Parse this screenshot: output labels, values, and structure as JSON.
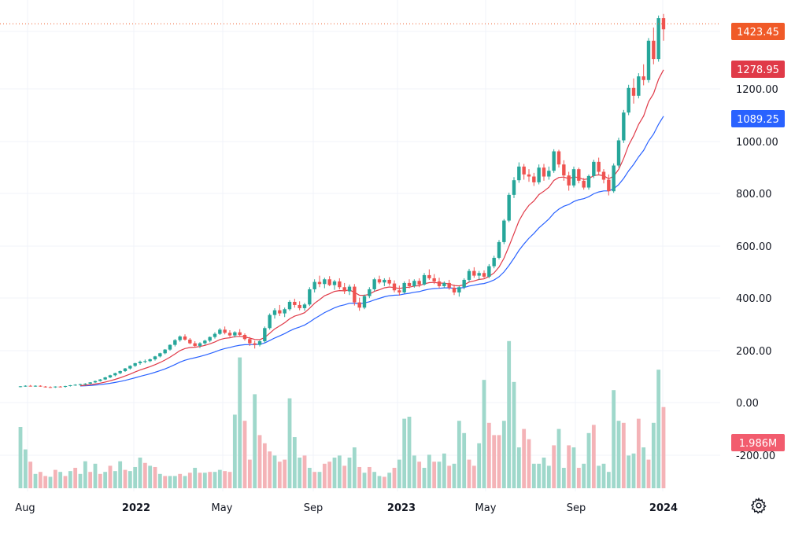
{
  "chart_data": {
    "type": "candlestick",
    "x_labels": [
      "Aug",
      "2022",
      "May",
      "Sep",
      "2023",
      "May",
      "Sep",
      "2024"
    ],
    "x_labels_bold": [
      "2022",
      "2023",
      "2024"
    ],
    "y_ticks": [
      "1200.00",
      "1000.00",
      "800.00",
      "600.00",
      "400.00",
      "200.00",
      "0.00",
      "-200.00"
    ],
    "price_ylim": [
      -300,
      1500
    ],
    "last_price": {
      "label": "1423.45",
      "value": 1423.45,
      "color": "#f05a28"
    },
    "ma_fast": {
      "label": "1278.95",
      "value": 1278.95,
      "color": "#e03a48"
    },
    "ma_slow": {
      "label": "1089.25",
      "value": 1089.25,
      "color": "#2962ff"
    },
    "volume": {
      "label": "1.986M",
      "color": "#f25c6e"
    },
    "colors": {
      "up": "#26a69a",
      "down": "#ef5350",
      "vol_up": "#9fd8cb",
      "vol_down": "#f4b3b7",
      "grid": "#f0f3fa"
    },
    "candles": [
      [
        60,
        63,
        58,
        62
      ],
      [
        62,
        66,
        60,
        64
      ],
      [
        64,
        67,
        61,
        63
      ],
      [
        63,
        66,
        60,
        64
      ],
      [
        64,
        66,
        60,
        61
      ],
      [
        61,
        63,
        57,
        59
      ],
      [
        59,
        62,
        56,
        58
      ],
      [
        58,
        62,
        56,
        61
      ],
      [
        61,
        63,
        58,
        60
      ],
      [
        60,
        64,
        57,
        63
      ],
      [
        63,
        67,
        61,
        66
      ],
      [
        66,
        70,
        64,
        68
      ],
      [
        68,
        72,
        65,
        70
      ],
      [
        70,
        74,
        67,
        72
      ],
      [
        72,
        78,
        70,
        77
      ],
      [
        77,
        84,
        75,
        82
      ],
      [
        82,
        90,
        80,
        88
      ],
      [
        88,
        98,
        86,
        96
      ],
      [
        96,
        106,
        93,
        104
      ],
      [
        104,
        114,
        100,
        112
      ],
      [
        112,
        122,
        108,
        120
      ],
      [
        120,
        132,
        117,
        130
      ],
      [
        130,
        142,
        126,
        140
      ],
      [
        140,
        152,
        136,
        150
      ],
      [
        150,
        160,
        144,
        156
      ],
      [
        156,
        164,
        150,
        158
      ],
      [
        158,
        168,
        154,
        165
      ],
      [
        165,
        178,
        160,
        176
      ],
      [
        176,
        190,
        172,
        188
      ],
      [
        188,
        204,
        184,
        202
      ],
      [
        202,
        222,
        198,
        220
      ],
      [
        220,
        242,
        214,
        238
      ],
      [
        238,
        256,
        232,
        252
      ],
      [
        252,
        260,
        236,
        240
      ],
      [
        240,
        246,
        222,
        226
      ],
      [
        226,
        234,
        210,
        216
      ],
      [
        216,
        230,
        208,
        226
      ],
      [
        226,
        240,
        220,
        236
      ],
      [
        236,
        252,
        230,
        250
      ],
      [
        250,
        268,
        244,
        262
      ],
      [
        262,
        284,
        258,
        278
      ],
      [
        278,
        290,
        260,
        266
      ],
      [
        266,
        276,
        250,
        256
      ],
      [
        256,
        272,
        248,
        268
      ],
      [
        268,
        280,
        254,
        258
      ],
      [
        258,
        264,
        236,
        242
      ],
      [
        242,
        250,
        216,
        226
      ],
      [
        226,
        236,
        206,
        220
      ],
      [
        220,
        238,
        214,
        234
      ],
      [
        234,
        290,
        228,
        284
      ],
      [
        284,
        340,
        278,
        334
      ],
      [
        334,
        360,
        320,
        352
      ],
      [
        352,
        372,
        330,
        340
      ],
      [
        340,
        362,
        326,
        356
      ],
      [
        356,
        390,
        350,
        384
      ],
      [
        384,
        396,
        362,
        372
      ],
      [
        372,
        386,
        352,
        360
      ],
      [
        360,
        380,
        350,
        374
      ],
      [
        374,
        440,
        368,
        432
      ],
      [
        432,
        470,
        420,
        460
      ],
      [
        460,
        484,
        440,
        452
      ],
      [
        452,
        476,
        436,
        470
      ],
      [
        470,
        482,
        444,
        448
      ],
      [
        448,
        468,
        430,
        462
      ],
      [
        462,
        474,
        432,
        440
      ],
      [
        440,
        456,
        414,
        424
      ],
      [
        424,
        450,
        410,
        442
      ],
      [
        442,
        452,
        370,
        382
      ],
      [
        382,
        400,
        350,
        362
      ],
      [
        362,
        412,
        356,
        406
      ],
      [
        406,
        440,
        398,
        432
      ],
      [
        432,
        476,
        424,
        470
      ],
      [
        470,
        484,
        452,
        458
      ],
      [
        458,
        474,
        444,
        468
      ],
      [
        468,
        478,
        446,
        454
      ],
      [
        454,
        466,
        420,
        428
      ],
      [
        428,
        446,
        408,
        420
      ],
      [
        420,
        462,
        416,
        456
      ],
      [
        456,
        470,
        436,
        444
      ],
      [
        444,
        470,
        438,
        464
      ],
      [
        464,
        474,
        440,
        450
      ],
      [
        450,
        494,
        446,
        486
      ],
      [
        486,
        508,
        468,
        474
      ],
      [
        474,
        490,
        452,
        462
      ],
      [
        462,
        476,
        436,
        444
      ],
      [
        444,
        462,
        436,
        456
      ],
      [
        456,
        468,
        430,
        438
      ],
      [
        438,
        450,
        410,
        420
      ],
      [
        420,
        444,
        404,
        440
      ],
      [
        440,
        474,
        432,
        468
      ],
      [
        468,
        510,
        460,
        502
      ],
      [
        502,
        516,
        476,
        484
      ],
      [
        484,
        502,
        468,
        494
      ],
      [
        494,
        504,
        474,
        480
      ],
      [
        480,
        528,
        474,
        520
      ],
      [
        520,
        560,
        512,
        552
      ],
      [
        552,
        620,
        546,
        612
      ],
      [
        612,
        700,
        604,
        694
      ],
      [
        694,
        800,
        688,
        792
      ],
      [
        792,
        860,
        780,
        848
      ],
      [
        848,
        916,
        838,
        900
      ],
      [
        900,
        910,
        850,
        870
      ],
      [
        870,
        890,
        842,
        862
      ],
      [
        862,
        876,
        826,
        840
      ],
      [
        840,
        908,
        832,
        896
      ],
      [
        896,
        910,
        846,
        862
      ],
      [
        862,
        900,
        850,
        884
      ],
      [
        884,
        966,
        876,
        958
      ],
      [
        958,
        964,
        896,
        908
      ],
      [
        908,
        924,
        846,
        866
      ],
      [
        866,
        880,
        808,
        828
      ],
      [
        828,
        900,
        820,
        890
      ],
      [
        890,
        896,
        836,
        846
      ],
      [
        846,
        856,
        812,
        820
      ],
      [
        820,
        870,
        812,
        864
      ],
      [
        864,
        926,
        856,
        918
      ],
      [
        918,
        934,
        870,
        880
      ],
      [
        880,
        890,
        836,
        850
      ],
      [
        850,
        870,
        790,
        806
      ],
      [
        806,
        912,
        800,
        904
      ],
      [
        904,
        1010,
        896,
        1000
      ],
      [
        1000,
        1116,
        990,
        1106
      ],
      [
        1106,
        1212,
        1096,
        1200
      ],
      [
        1200,
        1236,
        1140,
        1170
      ],
      [
        1170,
        1256,
        1160,
        1244
      ],
      [
        1244,
        1290,
        1210,
        1230
      ],
      [
        1230,
        1390,
        1220,
        1380
      ],
      [
        1380,
        1430,
        1290,
        1310
      ],
      [
        1310,
        1476,
        1300,
        1466
      ],
      [
        1466,
        1482,
        1380,
        1423.45
      ]
    ],
    "volumes": [
      [
        1.5,
        "up"
      ],
      [
        0.95,
        "up"
      ],
      [
        0.65,
        "down"
      ],
      [
        0.35,
        "up"
      ],
      [
        0.4,
        "down"
      ],
      [
        0.3,
        "down"
      ],
      [
        0.28,
        "up"
      ],
      [
        0.45,
        "down"
      ],
      [
        0.4,
        "up"
      ],
      [
        0.3,
        "down"
      ],
      [
        0.42,
        "up"
      ],
      [
        0.5,
        "down"
      ],
      [
        0.35,
        "up"
      ],
      [
        0.66,
        "up"
      ],
      [
        0.4,
        "down"
      ],
      [
        0.6,
        "up"
      ],
      [
        0.35,
        "down"
      ],
      [
        0.4,
        "up"
      ],
      [
        0.55,
        "down"
      ],
      [
        0.42,
        "up"
      ],
      [
        0.66,
        "up"
      ],
      [
        0.45,
        "down"
      ],
      [
        0.42,
        "up"
      ],
      [
        0.52,
        "up"
      ],
      [
        0.75,
        "up"
      ],
      [
        0.62,
        "down"
      ],
      [
        0.55,
        "up"
      ],
      [
        0.52,
        "down"
      ],
      [
        0.35,
        "up"
      ],
      [
        0.3,
        "down"
      ],
      [
        0.3,
        "up"
      ],
      [
        0.3,
        "up"
      ],
      [
        0.35,
        "down"
      ],
      [
        0.3,
        "up"
      ],
      [
        0.38,
        "down"
      ],
      [
        0.5,
        "up"
      ],
      [
        0.38,
        "down"
      ],
      [
        0.38,
        "up"
      ],
      [
        0.4,
        "down"
      ],
      [
        0.4,
        "up"
      ],
      [
        0.45,
        "up"
      ],
      [
        0.42,
        "down"
      ],
      [
        0.4,
        "down"
      ],
      [
        1.8,
        "up"
      ],
      [
        3.2,
        "up"
      ],
      [
        1.65,
        "down"
      ],
      [
        0.7,
        "down"
      ],
      [
        2.3,
        "up"
      ],
      [
        1.3,
        "down"
      ],
      [
        1.1,
        "down"
      ],
      [
        0.9,
        "down"
      ],
      [
        0.8,
        "up"
      ],
      [
        0.65,
        "down"
      ],
      [
        0.7,
        "down"
      ],
      [
        2.2,
        "up"
      ],
      [
        1.25,
        "up"
      ],
      [
        0.75,
        "up"
      ],
      [
        0.8,
        "down"
      ],
      [
        0.5,
        "up"
      ],
      [
        0.4,
        "down"
      ],
      [
        0.4,
        "up"
      ],
      [
        0.6,
        "down"
      ],
      [
        0.65,
        "down"
      ],
      [
        0.75,
        "up"
      ],
      [
        0.8,
        "up"
      ],
      [
        0.55,
        "down"
      ],
      [
        0.75,
        "up"
      ],
      [
        1.0,
        "up"
      ],
      [
        0.52,
        "down"
      ],
      [
        0.38,
        "up"
      ],
      [
        0.52,
        "down"
      ],
      [
        0.4,
        "up"
      ],
      [
        0.3,
        "up"
      ],
      [
        0.28,
        "down"
      ],
      [
        0.38,
        "up"
      ],
      [
        0.5,
        "down"
      ],
      [
        0.7,
        "up"
      ],
      [
        1.7,
        "up"
      ],
      [
        1.75,
        "up"
      ],
      [
        0.8,
        "up"
      ],
      [
        0.65,
        "down"
      ],
      [
        0.5,
        "up"
      ],
      [
        0.82,
        "up"
      ],
      [
        0.65,
        "down"
      ],
      [
        0.65,
        "up"
      ],
      [
        0.85,
        "up"
      ],
      [
        0.55,
        "down"
      ],
      [
        0.6,
        "up"
      ],
      [
        1.65,
        "up"
      ],
      [
        1.35,
        "up"
      ],
      [
        0.7,
        "down"
      ],
      [
        0.55,
        "down"
      ],
      [
        1.1,
        "up"
      ],
      [
        2.65,
        "up"
      ],
      [
        1.6,
        "down"
      ],
      [
        1.3,
        "down"
      ],
      [
        1.3,
        "down"
      ],
      [
        1.65,
        "up"
      ],
      [
        3.6,
        "up"
      ],
      [
        2.6,
        "up"
      ],
      [
        1.0,
        "up"
      ],
      [
        1.45,
        "down"
      ],
      [
        1.2,
        "down"
      ],
      [
        0.6,
        "up"
      ],
      [
        0.6,
        "up"
      ],
      [
        0.75,
        "up"
      ],
      [
        0.55,
        "up"
      ],
      [
        1.05,
        "down"
      ],
      [
        1.45,
        "up"
      ],
      [
        0.5,
        "up"
      ],
      [
        1.05,
        "down"
      ],
      [
        1.0,
        "up"
      ],
      [
        0.5,
        "down"
      ],
      [
        0.6,
        "up"
      ],
      [
        1.35,
        "up"
      ],
      [
        1.55,
        "down"
      ],
      [
        0.55,
        "up"
      ],
      [
        0.6,
        "up"
      ],
      [
        0.4,
        "up"
      ],
      [
        2.4,
        "up"
      ],
      [
        1.65,
        "up"
      ],
      [
        1.6,
        "down"
      ],
      [
        0.8,
        "up"
      ],
      [
        0.85,
        "up"
      ],
      [
        1.7,
        "down"
      ],
      [
        1.0,
        "up"
      ],
      [
        0.7,
        "down"
      ],
      [
        1.6,
        "up"
      ],
      [
        2.9,
        "up"
      ],
      [
        1.986,
        "down"
      ]
    ]
  }
}
